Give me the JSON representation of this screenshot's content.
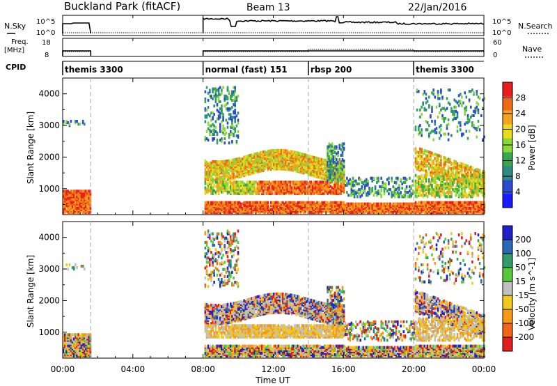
{
  "header": {
    "title": "Buckland Park (fitACF)",
    "beam": "Beam 13",
    "date": "22/Jan/2016"
  },
  "panels": {
    "nsky_label": "N.Sky",
    "nsky_ticks": [
      "10^5",
      "10^0"
    ],
    "nsearch_label": "N.Search",
    "nsearch_ticks": [
      "10^5",
      "10^0"
    ],
    "freq_label_1": "Freq.",
    "freq_label_2": "[MHz]",
    "freq_ticks": [
      "18",
      "8"
    ],
    "nave_label": "Nave",
    "nave_ticks": [
      "60",
      "0"
    ],
    "cpid_label": "CPID",
    "cpid_modes": [
      {
        "label": "themis 3300",
        "start_h": 0.0
      },
      {
        "label": "normal (fast) 151",
        "start_h": 8.0
      },
      {
        "label": "rbsp 200",
        "start_h": 14.0
      },
      {
        "label": "themis 3300",
        "start_h": 20.0
      }
    ],
    "data_gap_h": [
      1.6,
      8.0
    ]
  },
  "chart_data": [
    {
      "type": "heatmap",
      "name": "power",
      "ylabel": "Slant Range [km]",
      "ylim": [
        180,
        4500
      ],
      "yticks": [
        "1000",
        "2000",
        "3000",
        "4000"
      ],
      "ytick_values": [
        1000,
        2000,
        3000,
        4000
      ],
      "colorbar_label": "Power [dB]",
      "colorbar_ticks": [
        "4",
        "8",
        "12",
        "16",
        "20",
        "24",
        "28"
      ],
      "colorbar_values": [
        4,
        8,
        12,
        16,
        20,
        24,
        28
      ],
      "colorbar_range": [
        0,
        32
      ],
      "colors": [
        "#1a1aff",
        "#2b4bd0",
        "#2f8a86",
        "#34a84a",
        "#8ad83a",
        "#e8dc1e",
        "#f5a21e",
        "#f06a14",
        "#e81e1e"
      ]
    },
    {
      "type": "heatmap",
      "name": "velocity",
      "ylabel": "Slant Range [km]",
      "ylim": [
        180,
        4500
      ],
      "yticks": [
        "1000",
        "2000",
        "3000",
        "4000"
      ],
      "ytick_values": [
        1000,
        2000,
        3000,
        4000
      ],
      "colorbar_label": "Velocity [m s^-1]",
      "colorbar_ticks": [
        "200",
        "100",
        "50",
        "15",
        "-15",
        "-50",
        "-100",
        "-200"
      ],
      "colors": [
        "#2020c8",
        "#2a6ab4",
        "#2f9c6a",
        "#56c83a",
        "#c0c0c0",
        "#f0c81e",
        "#f59a14",
        "#f06414",
        "#e01e1e"
      ]
    }
  ],
  "x_axis": {
    "label": "Time UT",
    "xlim": [
      0,
      24
    ],
    "ticks": [
      "00:00",
      "04:00",
      "08:00",
      "12:00",
      "16:00",
      "20:00",
      "00:00"
    ],
    "tick_values": [
      0,
      4,
      8,
      12,
      16,
      20,
      24
    ]
  }
}
